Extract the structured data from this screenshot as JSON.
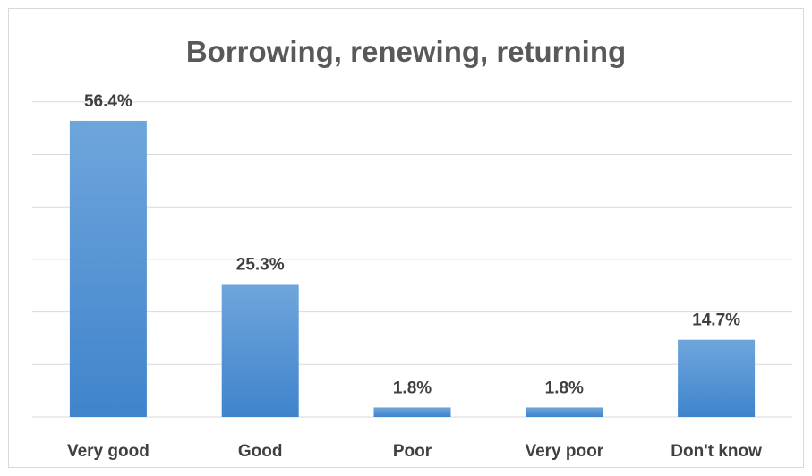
{
  "chart_data": {
    "type": "bar",
    "title": "Borrowing, renewing, returning",
    "xlabel": "",
    "ylabel": "",
    "categories": [
      "Very good",
      "Good",
      "Poor",
      "Very poor",
      "Don't know"
    ],
    "values": [
      56.4,
      25.3,
      1.8,
      1.8,
      14.7
    ],
    "data_labels": [
      "56.4%",
      "25.3%",
      "1.8%",
      "1.8%",
      "14.7%"
    ],
    "unit": "%",
    "ylim": [
      0,
      60
    ],
    "y_gridline_step": 10,
    "grid": true,
    "legend": "none",
    "colors": {
      "bar_top": "#6fa5dc",
      "bar_bottom": "#3f84cc",
      "grid": "#d9d9d9",
      "title": "#595959",
      "labels": "#404040"
    }
  }
}
